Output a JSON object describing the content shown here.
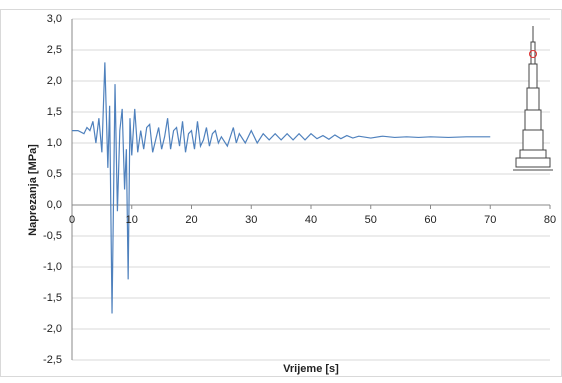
{
  "chart_data": {
    "type": "line",
    "x_label": "Vrijeme [s]",
    "y_label": "Naprezanja [MPa]",
    "xlim": [
      0,
      80
    ],
    "xticks": [
      0,
      10,
      20,
      30,
      40,
      50,
      60,
      70,
      80
    ],
    "ylim": [
      -2.5,
      3
    ],
    "yticks": [
      {
        "value": -2.5,
        "label": "-2,5"
      },
      {
        "value": -2,
        "label": "-2,0"
      },
      {
        "value": -1.5,
        "label": "-1,5"
      },
      {
        "value": -1,
        "label": "-1,0"
      },
      {
        "value": -0.5,
        "label": "-0,5"
      },
      {
        "value": 0,
        "label": "0,0"
      },
      {
        "value": 0.5,
        "label": "0,5"
      },
      {
        "value": 1,
        "label": "1,0"
      },
      {
        "value": 1.5,
        "label": "1,5"
      },
      {
        "value": 2,
        "label": "2,0"
      },
      {
        "value": 2.5,
        "label": "2,5"
      },
      {
        "value": 3,
        "label": "3,0"
      }
    ],
    "grid": true,
    "x": [
      0,
      1,
      2,
      2.5,
      3,
      3.5,
      4,
      4.5,
      5,
      5.5,
      6,
      6.3,
      6.7,
      7.2,
      7.6,
      8,
      8.4,
      8.8,
      9.1,
      9.4,
      9.7,
      10,
      10.5,
      11,
      11.5,
      12,
      12.5,
      13,
      13.5,
      14,
      14.5,
      15,
      15.5,
      16,
      16.5,
      17,
      17.5,
      18,
      18.5,
      19,
      19.5,
      20,
      20.5,
      21,
      21.5,
      22,
      22.5,
      23,
      23.5,
      24,
      24.5,
      25,
      26,
      27,
      27.5,
      28,
      29,
      30,
      31,
      32,
      33,
      34,
      35,
      36,
      37,
      38,
      39,
      40,
      41,
      42,
      43,
      44,
      45,
      46,
      47,
      48,
      50,
      52,
      54,
      56,
      58,
      60,
      63,
      66,
      70
    ],
    "series": [
      {
        "color": "#4f81bd",
        "values": [
          1.2,
          1.2,
          1.15,
          1.25,
          1.2,
          1.35,
          1.0,
          1.4,
          0.85,
          2.3,
          0.6,
          1.6,
          -1.75,
          1.95,
          -0.1,
          1.2,
          1.55,
          0.25,
          0.9,
          -1.2,
          1.4,
          0.8,
          1.55,
          0.85,
          1.2,
          0.9,
          1.25,
          1.3,
          0.85,
          1.05,
          1.25,
          0.9,
          1.1,
          1.4,
          0.9,
          1.2,
          1.25,
          0.95,
          1.35,
          0.85,
          1.15,
          1.2,
          0.9,
          1.35,
          0.95,
          1.05,
          1.25,
          0.95,
          1.15,
          1.2,
          1.0,
          1.1,
          0.95,
          1.25,
          1.0,
          1.15,
          1.0,
          1.2,
          1.0,
          1.15,
          1.05,
          1.15,
          1.05,
          1.15,
          1.05,
          1.15,
          1.05,
          1.15,
          1.07,
          1.12,
          1.06,
          1.13,
          1.07,
          1.12,
          1.08,
          1.11,
          1.08,
          1.11,
          1.09,
          1.1,
          1.09,
          1.1,
          1.09,
          1.1,
          1.1
        ]
      }
    ]
  }
}
